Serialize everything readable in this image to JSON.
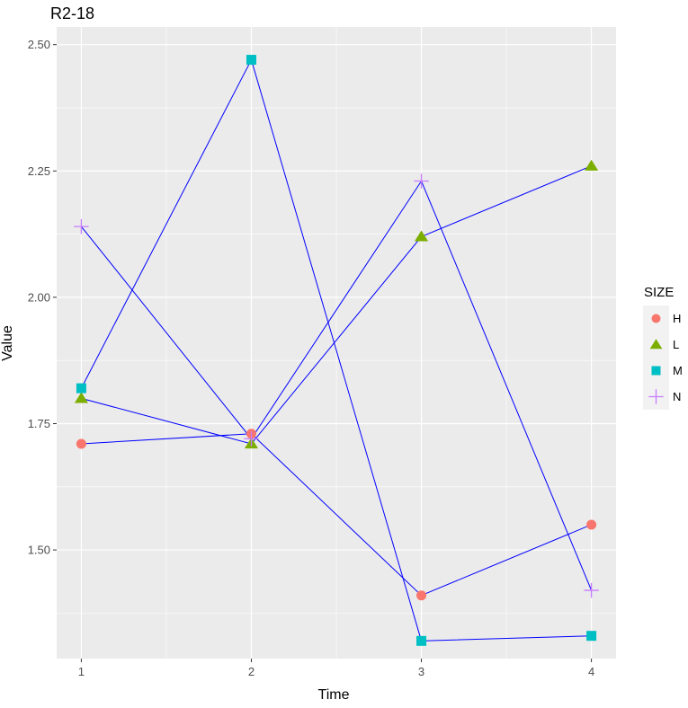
{
  "chart_data": {
    "type": "line",
    "title": "R2-18",
    "xlabel": "Time",
    "ylabel": "Value",
    "x": [
      1,
      2,
      3,
      4
    ],
    "xlim": [
      0.855,
      4.145
    ],
    "ylim": [
      1.285,
      2.535
    ],
    "y_ticks": [
      "1.50",
      "1.75",
      "2.00",
      "2.25",
      "2.50"
    ],
    "x_ticks": [
      "1",
      "2",
      "3",
      "4"
    ],
    "grid": true,
    "line_color": "#0000ff",
    "legend": {
      "title": "SIZE",
      "placement": "right"
    },
    "series": [
      {
        "name": "H",
        "shape": "circle",
        "color": "#f8766d",
        "values": [
          1.71,
          1.73,
          1.41,
          1.55
        ]
      },
      {
        "name": "L",
        "shape": "triangle",
        "color": "#7cae00",
        "values": [
          1.8,
          1.71,
          2.12,
          2.26
        ]
      },
      {
        "name": "M",
        "shape": "square",
        "color": "#00bfc4",
        "values": [
          1.82,
          2.47,
          1.32,
          1.33
        ]
      },
      {
        "name": "N",
        "shape": "plus",
        "color": "#c77cff",
        "values": [
          2.14,
          1.72,
          2.23,
          1.42
        ]
      }
    ]
  }
}
